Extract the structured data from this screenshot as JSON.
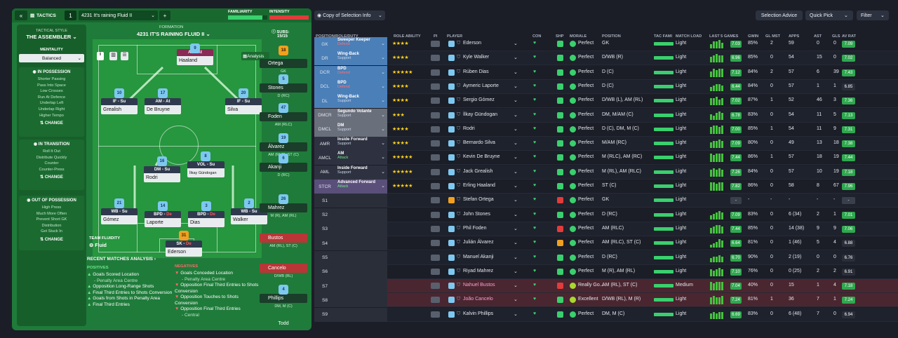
{
  "toolbar": {
    "back": "«",
    "tactics_label": "TACTICS",
    "tactic_num": "1",
    "tactic_name": "4231 It's raining Fluid II",
    "add": "+",
    "familiarity": "FAMILIARITY",
    "intensity": "INTENSITY"
  },
  "sidebar": {
    "style_title": "TACTICAL STYLE",
    "style_name": "THE ASSEMBLER",
    "mentality_label": "MENTALITY",
    "mentality": "Balanced",
    "in_possession": {
      "title": "IN POSSESSION",
      "items": [
        "Shorter Passing",
        "Pass Into Space",
        "Low Crosses",
        "Run At Defence",
        "Underlap Left",
        "Underlap Right",
        "Higher Tempo"
      ],
      "change": "CHANGE"
    },
    "in_transition": {
      "title": "IN TRANSITION",
      "items": [
        "Roll It Out",
        "Distribute Quickly",
        "Counter",
        "Counter-Press"
      ],
      "change": "CHANGE"
    },
    "out_of_possession": {
      "title": "OUT OF POSSESSION",
      "items": [
        "High Press",
        "Much More Often",
        "Prevent Short GK",
        "Distribution",
        "Get Stuck In"
      ],
      "change": "CHANGE"
    }
  },
  "formation": {
    "label": "FORMATION",
    "name": "4231 IT'S RAINING FLUID II",
    "analysis": "Analysis",
    "subs_label": "SUBS:",
    "subs_value": "15/15",
    "fluidity_label": "TEAM FLUIDITY",
    "fluidity": "Fluid"
  },
  "pitch_players": [
    {
      "num": "9",
      "role": "AF",
      "duty": "At",
      "name": "Haaland"
    },
    {
      "num": "10",
      "role": "IF",
      "duty": "Su",
      "name": "Grealish"
    },
    {
      "num": "17",
      "role": "AM",
      "duty": "At",
      "name": "De Bruyne"
    },
    {
      "num": "20",
      "role": "IF",
      "duty": "Su",
      "name": "Silva"
    },
    {
      "num": "16",
      "role": "DM",
      "duty": "Su",
      "name": "Rodri"
    },
    {
      "num": "8",
      "role": "VOL",
      "duty": "Su",
      "name": "İlkay Gündogan"
    },
    {
      "num": "21",
      "role": "WB",
      "duty": "Su",
      "name": "Gómez"
    },
    {
      "num": "14",
      "role": "BPD",
      "duty": "De",
      "name": "Laporte"
    },
    {
      "num": "3",
      "role": "BPD",
      "duty": "De",
      "name": "Dias"
    },
    {
      "num": "2",
      "role": "WB",
      "duty": "Su",
      "name": "Walker"
    },
    {
      "num": "31",
      "role": "SK",
      "duty": "De",
      "name": "Ederson"
    }
  ],
  "subs": [
    {
      "num": "18",
      "name": "Ortega",
      "pos": "GK"
    },
    {
      "num": "5",
      "name": "Stones",
      "pos": "D (RC)"
    },
    {
      "num": "47",
      "name": "Foden",
      "pos": "AM (RLC)"
    },
    {
      "num": "19",
      "name": "Álvarez",
      "pos": "AM (RLC), ST (C)"
    },
    {
      "num": "6",
      "name": "Akanji",
      "pos": "D (RC)"
    },
    {
      "num": "26",
      "name": "Mahrez",
      "pos": "M (R), AM (RL)"
    },
    {
      "num": "",
      "name": "Bustos",
      "pos": "AM (RL), ST (C)"
    },
    {
      "num": "",
      "name": "Cancelo",
      "pos": "D/WB (RL)"
    },
    {
      "num": "4",
      "name": "Phillips",
      "pos": "DM, M (C)"
    },
    {
      "num": "",
      "name": "Todd",
      "pos": ""
    }
  ],
  "analysis": {
    "title": "RECENT MATCHES ANALYSIS",
    "positives_label": "POSITIVES",
    "negatives_label": "NEGATIVES",
    "positives": [
      "Goals Scored Location",
      "- Penalty Area Centre",
      "Opposition Long-Range Shots",
      "Final Third Entries to Shots Conversion",
      "Goals from Shots in Penalty Area",
      "Final Third Entries"
    ],
    "negatives": [
      "Goals Conceded Location",
      "- Penalty Area Centre",
      "Opposition Final Third Entries to Shots Conversion",
      "Opposition Touches to Shots Conversion",
      "Opposition Final Third Entries",
      "- Central"
    ]
  },
  "right_toolbar": {
    "copy": "Copy of Selection Info",
    "advice": "Selection Advice",
    "quick_pick": "Quick Pick",
    "filter": "Filter"
  },
  "table": {
    "headers": [
      "POSITION/ROLE/DUTY",
      "ROLE ABILITY",
      "PI",
      "PLAYER",
      "CON",
      "SHP",
      "MORALE",
      "POSITION",
      "TAC FAMI",
      "MATCH LOAD",
      "LAST 5 GAMES",
      "GWIN",
      "GL MST",
      "APPS",
      "AST",
      "GLS",
      "AV RAT"
    ],
    "rows": [
      {
        "pos": "GK",
        "role": "Sweeper Keeper",
        "duty": "Defend",
        "stars": "★★★★",
        "player": "Ederson",
        "morale": "Perfect",
        "position": "GK",
        "load": "Light",
        "rat5": "7.03",
        "gwin": "85%",
        "glmst": "2",
        "apps": "59",
        "ast": "0",
        "gls": "0",
        "avrat": "7.09",
        "sel": true,
        "c": "#4b7fb8"
      },
      {
        "pos": "DR",
        "role": "Wing-Back",
        "duty": "Support",
        "stars": "★★★★",
        "player": "Kyle Walker",
        "morale": "Perfect",
        "position": "D/WB (R)",
        "load": "Light",
        "rat5": "6.96",
        "gwin": "85%",
        "glmst": "0",
        "apps": "54",
        "ast": "15",
        "gls": "0",
        "avrat": "7.02",
        "sel": true,
        "c": "#4b7fb8"
      },
      {
        "pos": "DCR",
        "role": "BPD",
        "duty": "Defend",
        "stars": "★★★★★",
        "player": "Rúben Dias",
        "morale": "Perfect",
        "position": "D (C)",
        "load": "Light",
        "rat5": "7.12",
        "gwin": "84%",
        "glmst": "2",
        "apps": "57",
        "ast": "6",
        "gls": "39",
        "avrat": "7.43",
        "sel": true,
        "c": "#4b7fb8"
      },
      {
        "pos": "DCL",
        "role": "BPD",
        "duty": "Defend",
        "stars": "★★★★",
        "player": "Aymeric Laporte",
        "morale": "Perfect",
        "position": "D (C)",
        "load": "Light",
        "rat5": "6.44",
        "gwin": "84%",
        "glmst": "0",
        "apps": "57",
        "ast": "1",
        "gls": "1",
        "avrat": "6.85",
        "sel": true,
        "c": "#4b7fb8"
      },
      {
        "pos": "DL",
        "role": "Wing-Back",
        "duty": "Support",
        "stars": "★★★★",
        "player": "Sergio Gómez",
        "morale": "Perfect",
        "position": "D/WB (L), AM (RL)",
        "load": "Light",
        "rat5": "7.02",
        "gwin": "87%",
        "glmst": "1",
        "apps": "52",
        "ast": "46",
        "gls": "3",
        "avrat": "7.36",
        "sel": true,
        "c": "#4b7fb8"
      },
      {
        "pos": "DMCR",
        "role": "Segundo Volante",
        "duty": "Support",
        "stars": "★★★",
        "player": "İlkay Gündogan",
        "morale": "Perfect",
        "position": "DM, M/AM (C)",
        "load": "Light",
        "rat5": "6.78",
        "gwin": "83%",
        "glmst": "0",
        "apps": "54",
        "ast": "11",
        "gls": "5",
        "avrat": "7.13",
        "sel": true,
        "c": "#6a6f7c"
      },
      {
        "pos": "DMCL",
        "role": "DM",
        "duty": "Support",
        "stars": "★★★★",
        "player": "Rodri",
        "morale": "Perfect",
        "position": "D (C), DM, M (C)",
        "load": "Light",
        "rat5": "7.00",
        "gwin": "85%",
        "glmst": "1",
        "apps": "54",
        "ast": "11",
        "gls": "9",
        "avrat": "7.31",
        "sel": true,
        "c": "#6a6f7c"
      },
      {
        "pos": "AMR",
        "role": "Inside Forward",
        "duty": "Support",
        "stars": "★★★★",
        "player": "Bernardo Silva",
        "morale": "Perfect",
        "position": "M/AM (RC)",
        "load": "Light",
        "rat5": "7.09",
        "gwin": "80%",
        "glmst": "0",
        "apps": "49",
        "ast": "13",
        "gls": "18",
        "avrat": "7.38",
        "sel": true,
        "c": "#2e3240"
      },
      {
        "pos": "AMCL",
        "role": "AM",
        "duty": "Attack",
        "stars": "★★★★★",
        "player": "Kevin De Bruyne",
        "morale": "Perfect",
        "position": "M (RLC), AM (RC)",
        "load": "Light",
        "rat5": "7.44",
        "gwin": "86%",
        "glmst": "1",
        "apps": "57",
        "ast": "18",
        "gls": "19",
        "avrat": "7.44",
        "sel": true,
        "c": "#2e3240"
      },
      {
        "pos": "AML",
        "role": "Inside Forward",
        "duty": "Support",
        "stars": "★★★★★",
        "player": "Jack Grealish",
        "morale": "Perfect",
        "position": "M (RL), AM (RLC)",
        "load": "Light",
        "rat5": "7.26",
        "gwin": "84%",
        "glmst": "0",
        "apps": "57",
        "ast": "10",
        "gls": "19",
        "avrat": "7.18",
        "sel": true,
        "c": "#2e3240"
      },
      {
        "pos": "STCR",
        "role": "Advanced Forward",
        "duty": "Attack",
        "stars": "★★★★★",
        "player": "Erling Haaland",
        "morale": "Perfect",
        "position": "ST (C)",
        "load": "Light",
        "rat5": "7.82",
        "gwin": "86%",
        "glmst": "0",
        "apps": "58",
        "ast": "8",
        "gls": "67",
        "avrat": "7.96",
        "sel": true,
        "c": "#5a4f7a"
      },
      {
        "pos": "S1",
        "player": "Stefan Ortega",
        "morale": "Perfect",
        "position": "GK",
        "load": "Light",
        "rat5": "-",
        "gwin": "-",
        "glmst": "-",
        "apps": "-",
        "ast": "-",
        "gls": "-",
        "avrat": "-",
        "shirt": "orange"
      },
      {
        "pos": "S2",
        "player": "John Stones",
        "morale": "Perfect",
        "position": "D (RC)",
        "load": "Light",
        "rat5": "7.09",
        "gwin": "83%",
        "glmst": "0",
        "apps": "6 (34)",
        "ast": "2",
        "gls": "1",
        "avrat": "7.01"
      },
      {
        "pos": "S3",
        "player": "Phil Foden",
        "morale": "Perfect",
        "position": "AM (RLC)",
        "load": "Light",
        "rat5": "7.44",
        "gwin": "85%",
        "glmst": "0",
        "apps": "14 (38)",
        "ast": "9",
        "gls": "9",
        "avrat": "7.06"
      },
      {
        "pos": "S4",
        "player": "Julián Álvarez",
        "morale": "Perfect",
        "position": "AM (RLC), ST (C)",
        "load": "Light",
        "rat5": "6.64",
        "gwin": "81%",
        "glmst": "0",
        "apps": "1 (46)",
        "ast": "5",
        "gls": "4",
        "avrat": "6.88"
      },
      {
        "pos": "S5",
        "player": "Manuel Akanji",
        "morale": "Perfect",
        "position": "D (RC)",
        "load": "Light",
        "rat5": "6.70",
        "gwin": "90%",
        "glmst": "0",
        "apps": "2 (19)",
        "ast": "0",
        "gls": "0",
        "avrat": "6.76"
      },
      {
        "pos": "S6",
        "player": "Riyad Mahrez",
        "morale": "Perfect",
        "position": "M (R), AM (RL)",
        "load": "Light",
        "rat5": "7.10",
        "gwin": "76%",
        "glmst": "0",
        "apps": "0 (25)",
        "ast": "2",
        "gls": "2",
        "avrat": "6.91"
      },
      {
        "pos": "S7",
        "player": "Nahuel Bustos",
        "morale": "Really Go...",
        "position": "AM (RL), ST (C)",
        "load": "Medium",
        "rat5": "7.04",
        "gwin": "40%",
        "glmst": "0",
        "apps": "15",
        "ast": "1",
        "gls": "4",
        "avrat": "7.18",
        "loan": true
      },
      {
        "pos": "S8",
        "player": "João Cancelo",
        "morale": "Excellent",
        "position": "D/WB (RL), M (R)",
        "load": "Light",
        "rat5": "7.24",
        "gwin": "81%",
        "glmst": "1",
        "apps": "36",
        "ast": "7",
        "gls": "1",
        "avrat": "7.24",
        "loan": true
      },
      {
        "pos": "S9",
        "player": "Kalvin Phillips",
        "morale": "Perfect",
        "position": "DM, M (C)",
        "load": "Light",
        "rat5": "6.69",
        "gwin": "83%",
        "glmst": "0",
        "apps": "6 (48)",
        "ast": "7",
        "gls": "0",
        "avrat": "6.94"
      }
    ]
  },
  "colors": {
    "pitch": "#26963f",
    "panel": "#1f7b3a",
    "bg": "#1b1e27",
    "accent_green": "#3ad06e",
    "loan_row": "#4a2630"
  }
}
